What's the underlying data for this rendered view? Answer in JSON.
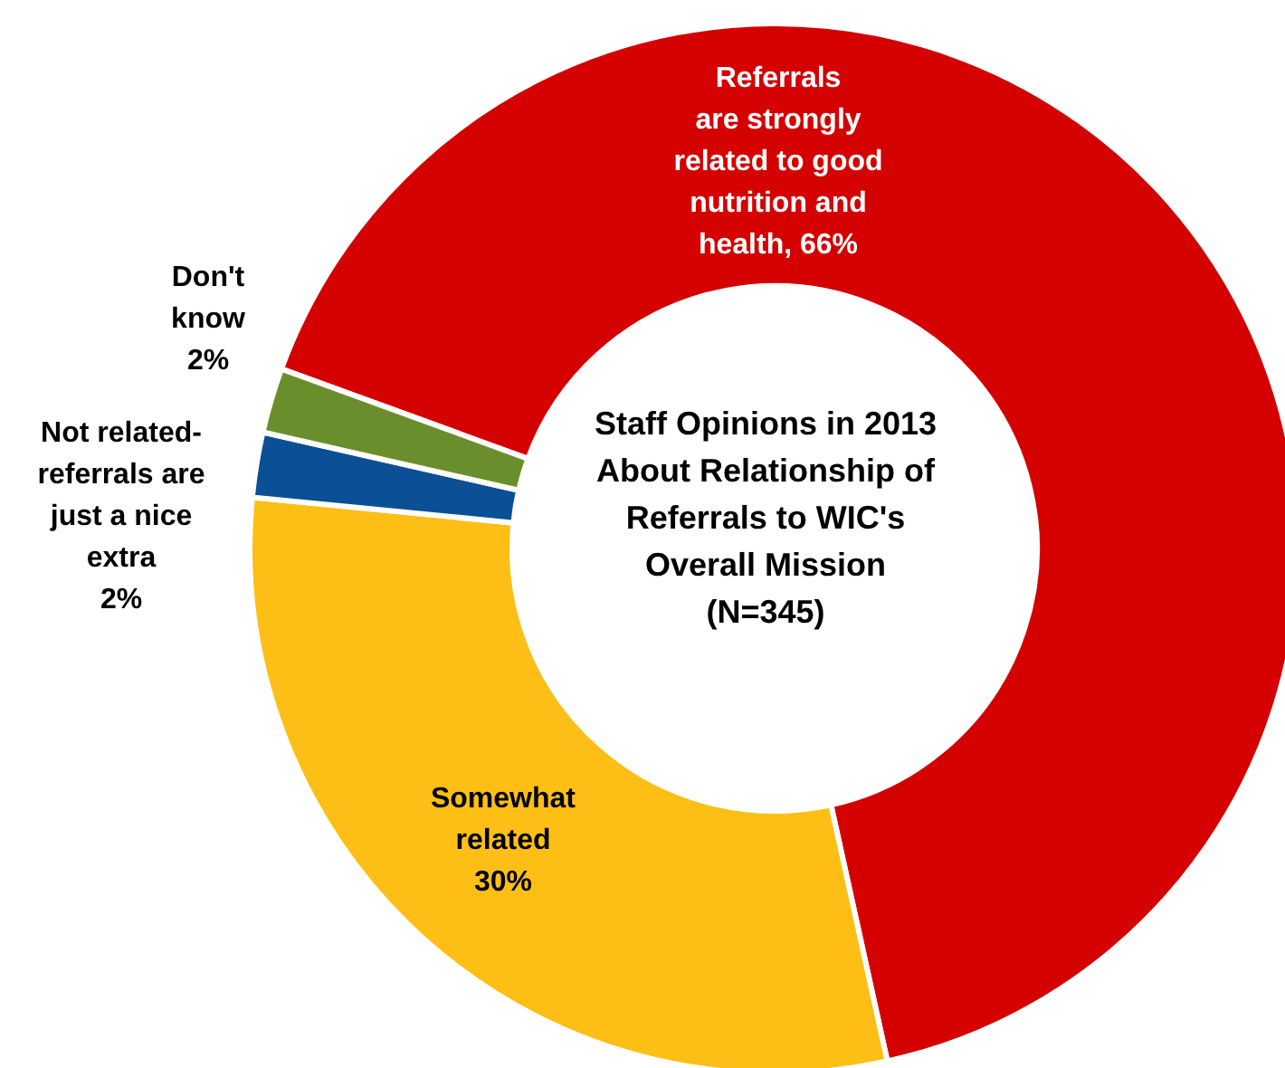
{
  "chart_data": {
    "type": "donut",
    "title": "Staff Opinions in 2013 About Relationship of Referrals to WIC's Overall Mission (N=345)",
    "categories": [
      "Referrals are strongly related to good nutrition and health",
      "Somewhat related",
      "Not related-referrals are just a nice extra",
      "Don't know"
    ],
    "values": [
      66,
      30,
      2,
      2
    ],
    "value_labels": [
      "66%",
      "30%",
      "2%",
      "2%"
    ],
    "colors": [
      "#d50000",
      "#fdbf15",
      "#0b4f96",
      "#6b8e2d"
    ],
    "data_labels": true
  }
}
